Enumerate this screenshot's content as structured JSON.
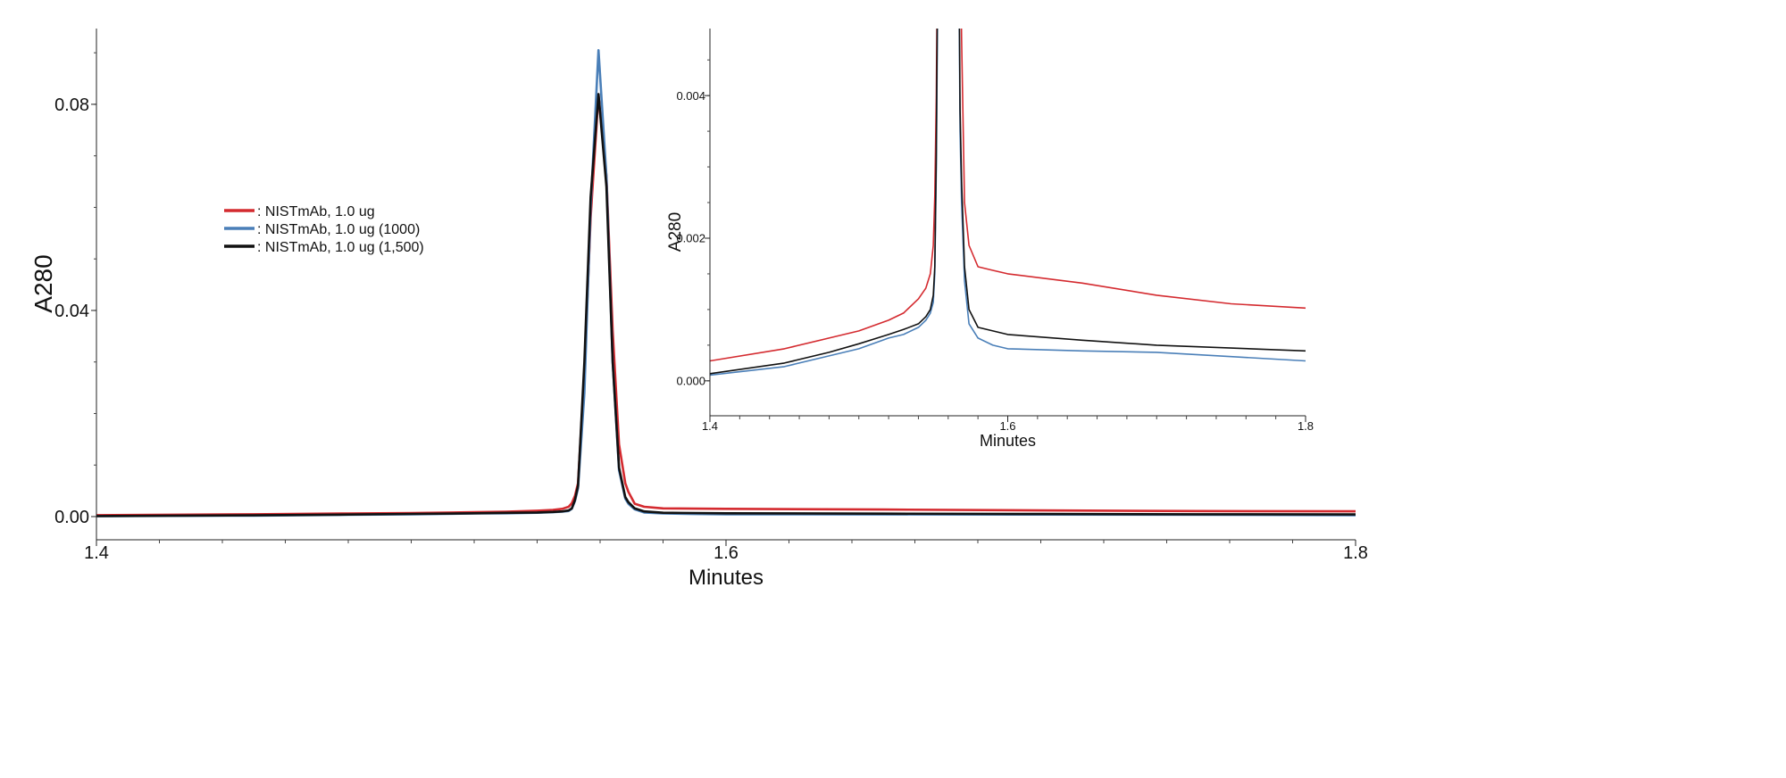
{
  "chart_data": {
    "type": "line",
    "legend": {
      "placement": "upper-left-center",
      "entries": [
        ": NISTmAb, 1.0 ug",
        ": NISTmAb, 1.0 ug (1000)",
        ": NISTmAb, 1.0 ug (1,500)"
      ]
    },
    "series": [
      {
        "name": ": NISTmAb, 1.0 ug",
        "color": "#d42a2f",
        "points": [
          [
            1.4,
            0.00028
          ],
          [
            1.45,
            0.00045
          ],
          [
            1.48,
            0.0006
          ],
          [
            1.5,
            0.0007
          ],
          [
            1.52,
            0.00085
          ],
          [
            1.53,
            0.00095
          ],
          [
            1.54,
            0.00115
          ],
          [
            1.545,
            0.0013
          ],
          [
            1.548,
            0.0015
          ],
          [
            1.55,
            0.0019
          ],
          [
            1.551,
            0.0026
          ],
          [
            1.552,
            0.004
          ],
          [
            1.553,
            0.0065
          ],
          [
            1.555,
            0.028
          ],
          [
            1.557,
            0.058
          ],
          [
            1.5595,
            0.0818
          ],
          [
            1.562,
            0.066
          ],
          [
            1.564,
            0.036
          ],
          [
            1.566,
            0.014
          ],
          [
            1.568,
            0.0065
          ],
          [
            1.569,
            0.0048
          ],
          [
            1.571,
            0.0025
          ],
          [
            1.574,
            0.0019
          ],
          [
            1.58,
            0.0016
          ],
          [
            1.59,
            0.00155
          ],
          [
            1.6,
            0.0015
          ],
          [
            1.65,
            0.00137
          ],
          [
            1.7,
            0.0012
          ],
          [
            1.75,
            0.00108
          ],
          [
            1.8,
            0.00102
          ]
        ]
      },
      {
        "name": ": NISTmAb, 1.0 ug (1000)",
        "color": "#4a7fb8",
        "points": [
          [
            1.4,
            8e-05
          ],
          [
            1.45,
            0.0002
          ],
          [
            1.48,
            0.00035
          ],
          [
            1.5,
            0.00045
          ],
          [
            1.52,
            0.0006
          ],
          [
            1.53,
            0.00065
          ],
          [
            1.54,
            0.00075
          ],
          [
            1.545,
            0.00085
          ],
          [
            1.548,
            0.00095
          ],
          [
            1.55,
            0.0011
          ],
          [
            1.551,
            0.0015
          ],
          [
            1.552,
            0.003
          ],
          [
            1.553,
            0.0055
          ],
          [
            1.555,
            0.024
          ],
          [
            1.557,
            0.06
          ],
          [
            1.5595,
            0.0905
          ],
          [
            1.562,
            0.066
          ],
          [
            1.564,
            0.03
          ],
          [
            1.566,
            0.009
          ],
          [
            1.568,
            0.0035
          ],
          [
            1.569,
            0.0025
          ],
          [
            1.571,
            0.0014
          ],
          [
            1.574,
            0.0008
          ],
          [
            1.58,
            0.0006
          ],
          [
            1.59,
            0.0005
          ],
          [
            1.6,
            0.00045
          ],
          [
            1.65,
            0.00042
          ],
          [
            1.7,
            0.0004
          ],
          [
            1.75,
            0.00034
          ],
          [
            1.8,
            0.00028
          ]
        ]
      },
      {
        "name": ": NISTmAb, 1.0 ug (1,500)",
        "color": "#111111",
        "points": [
          [
            1.4,
            0.0001
          ],
          [
            1.45,
            0.00025
          ],
          [
            1.48,
            0.0004
          ],
          [
            1.5,
            0.00052
          ],
          [
            1.52,
            0.00065
          ],
          [
            1.53,
            0.00072
          ],
          [
            1.54,
            0.0008
          ],
          [
            1.545,
            0.0009
          ],
          [
            1.548,
            0.001
          ],
          [
            1.55,
            0.0012
          ],
          [
            1.551,
            0.0016
          ],
          [
            1.552,
            0.0032
          ],
          [
            1.553,
            0.006
          ],
          [
            1.555,
            0.03
          ],
          [
            1.557,
            0.062
          ],
          [
            1.5595,
            0.082
          ],
          [
            1.562,
            0.064
          ],
          [
            1.564,
            0.03
          ],
          [
            1.566,
            0.0095
          ],
          [
            1.568,
            0.0038
          ],
          [
            1.569,
            0.0028
          ],
          [
            1.571,
            0.0016
          ],
          [
            1.574,
            0.001
          ],
          [
            1.58,
            0.00075
          ],
          [
            1.59,
            0.0007
          ],
          [
            1.6,
            0.00065
          ],
          [
            1.65,
            0.00057
          ],
          [
            1.7,
            0.0005
          ],
          [
            1.75,
            0.00046
          ],
          [
            1.8,
            0.00042
          ]
        ]
      }
    ],
    "panels": [
      {
        "id": "main",
        "xlabel": "Minutes",
        "ylabel": "A280",
        "xlim": [
          1.4,
          1.8
        ],
        "ylim": [
          -0.0045,
          0.0947
        ],
        "xticks": [
          "1.4",
          "1.6",
          "1.8"
        ],
        "yticks": [
          "0.00",
          "0.04",
          "0.08"
        ],
        "grid": false
      },
      {
        "id": "inset",
        "xlabel": "Minutes",
        "ylabel": "A280",
        "xlim": [
          1.4,
          1.8
        ],
        "ylim": [
          -0.00049,
          0.00494
        ],
        "xticks": [
          "1.4",
          "1.6",
          "1.8"
        ],
        "yticks": [
          "0.000",
          "0.002",
          "0.004"
        ],
        "grid": false
      }
    ]
  }
}
